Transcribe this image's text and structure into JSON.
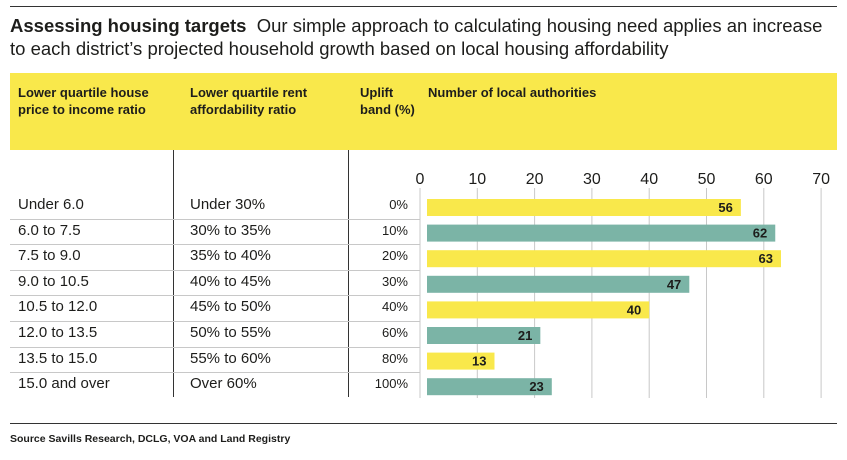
{
  "title": {
    "bold": "Assessing housing targets",
    "text": "Our simple approach to calculating housing need applies an increase to each district’s projected household growth based on local housing affordability"
  },
  "headers": {
    "house_price": "Lower quartile house price to income ratio",
    "rent": "Lower quartile rent affordability ratio",
    "uplift": "Uplift band (%)",
    "count": "Number of local authorities"
  },
  "rows": [
    {
      "price": "Under 6.0",
      "rent": "Under 30%",
      "band": "0%"
    },
    {
      "price": "6.0 to 7.5",
      "rent": "30% to 35%",
      "band": "10%"
    },
    {
      "price": "7.5 to 9.0",
      "rent": "35% to 40%",
      "band": "20%"
    },
    {
      "price": "9.0 to 10.5",
      "rent": "40% to 45%",
      "band": "30%"
    },
    {
      "price": "10.5 to 12.0",
      "rent": "45% to 50%",
      "band": "40%"
    },
    {
      "price": "12.0 to 13.5",
      "rent": "50% to 55%",
      "band": "60%"
    },
    {
      "price": "13.5 to 15.0",
      "rent": "55% to 60%",
      "band": "80%"
    },
    {
      "price": "15.0 and over",
      "rent": "Over 60%",
      "band": "100%"
    }
  ],
  "source": "Source Savills Research, DCLG, VOA and Land Registry",
  "colors": {
    "yellow": "#f9e84b",
    "teal": "#7bb4a6",
    "grid": "#c8c8c8"
  },
  "chart_data": {
    "type": "bar",
    "orientation": "horizontal",
    "title": "Number of local authorities",
    "categories": [
      "0%",
      "10%",
      "20%",
      "30%",
      "40%",
      "60%",
      "80%",
      "100%"
    ],
    "values": [
      56,
      62,
      63,
      47,
      40,
      21,
      13,
      23
    ],
    "xlim": [
      0,
      70
    ],
    "xticks": [
      0,
      10,
      20,
      30,
      40,
      50,
      60,
      70
    ],
    "grid": true,
    "legend": "none"
  }
}
